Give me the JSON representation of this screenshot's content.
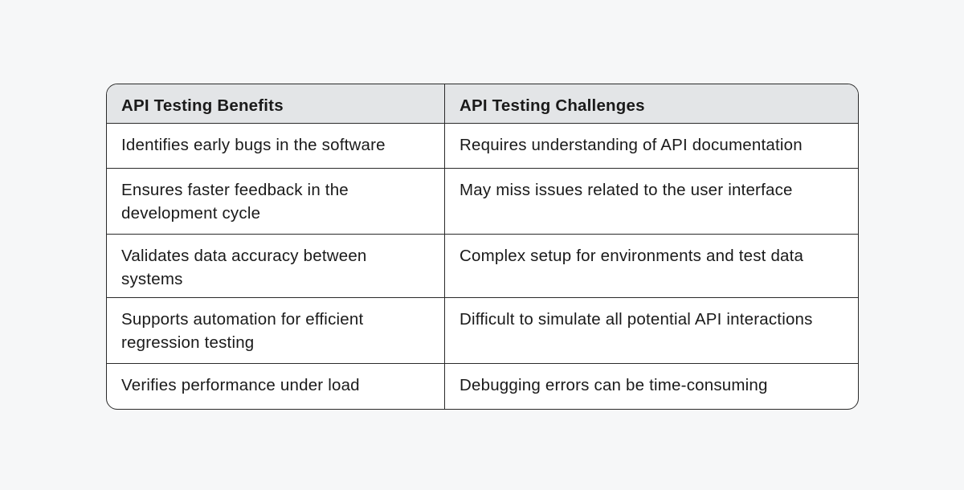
{
  "table": {
    "headers": [
      "API Testing Benefits",
      "API Testing Challenges"
    ],
    "rows": [
      [
        "Identifies early bugs in the software",
        "Requires understanding of API documentation"
      ],
      [
        "Ensures faster feedback in the development cycle",
        "May miss issues related to the user interface"
      ],
      [
        "Validates data accuracy between systems",
        "Complex setup for environments and test data"
      ],
      [
        "Supports automation for efficient regression testing",
        "Difficult to simulate all potential API interactions"
      ],
      [
        "Verifies performance under load",
        "Debugging errors can be time-consuming"
      ]
    ]
  },
  "colors": {
    "background": "#f6f7f8",
    "header_bg": "#e3e5e7",
    "border": "#2a2a2a"
  }
}
